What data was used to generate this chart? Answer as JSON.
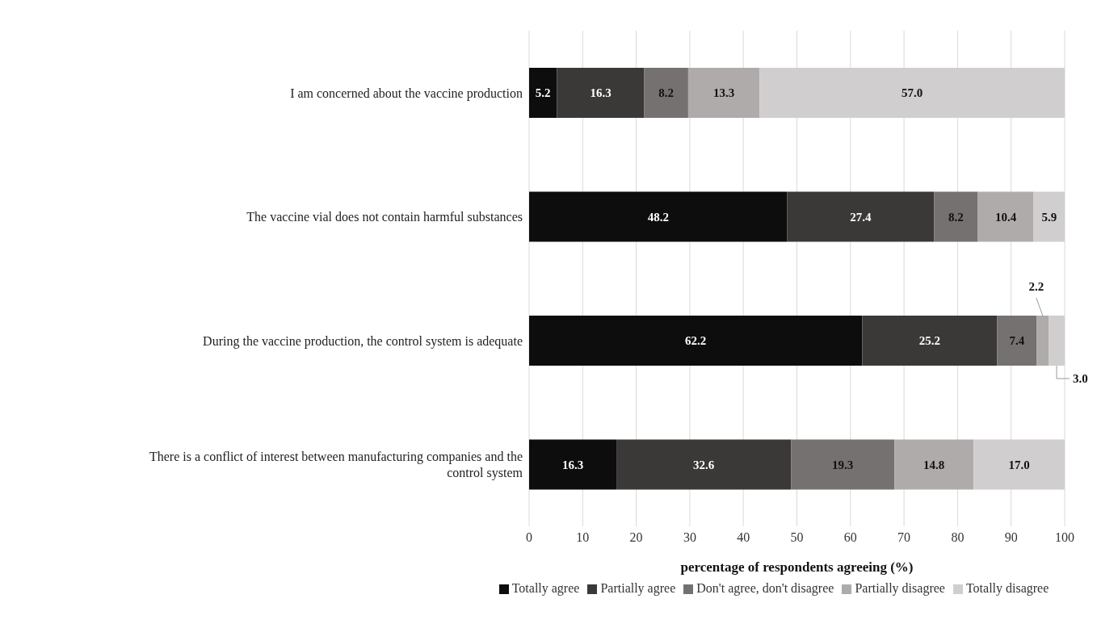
{
  "chart_data": {
    "type": "bar",
    "orientation": "horizontal",
    "stacked": true,
    "categories": [
      "I am concerned about the vaccine production",
      "The vaccine vial does not contain harmful substances",
      "During the vaccine production, the control system is adequate",
      "There is a conflict of interest between manufacturing companies and the control system"
    ],
    "series": [
      {
        "name": "Totally agree",
        "color": "#0d0d0d",
        "values": [
          5.2,
          48.2,
          62.2,
          16.3
        ],
        "value_labels": [
          "5.2",
          "48.2",
          "62.2",
          "16.3"
        ]
      },
      {
        "name": "Partially agree",
        "color": "#3b3838",
        "values": [
          16.3,
          27.4,
          25.2,
          32.6
        ],
        "value_labels": [
          "16.3",
          "27.4",
          "25.2",
          "32.6"
        ]
      },
      {
        "name": "Don't agree, don't disagree",
        "color": "#767171",
        "values": [
          8.2,
          8.2,
          7.4,
          19.3
        ],
        "value_labels": [
          "8.2",
          "8.2",
          "7.4",
          "19.3"
        ]
      },
      {
        "name": "Partially disagree",
        "color": "#afabab",
        "values": [
          13.3,
          10.4,
          2.2,
          14.8
        ],
        "value_labels": [
          "13.3",
          "10.4",
          "2.2",
          "14.8"
        ]
      },
      {
        "name": "Totally disagree",
        "color": "#d0cece",
        "values": [
          57.0,
          5.9,
          3.0,
          17.0
        ],
        "value_labels": [
          "57.0",
          "5.9",
          "3.0",
          "17.0"
        ]
      }
    ],
    "xlabel": "percentage of respondents agreeing (%)",
    "xlim": [
      0,
      100
    ],
    "xticks": [
      0,
      10,
      20,
      30,
      40,
      50,
      60,
      70,
      80,
      90,
      100
    ],
    "grid": "x",
    "legend": "bottom"
  }
}
